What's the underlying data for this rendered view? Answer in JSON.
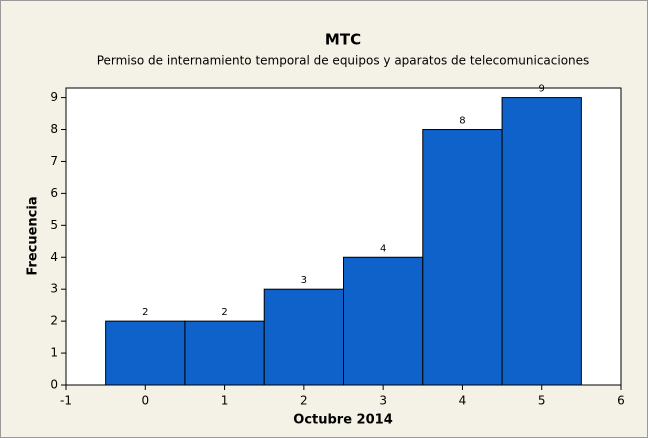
{
  "chart_data": {
    "type": "histogram",
    "title": "MTC",
    "subtitle": "Permiso de internamiento temporal de equipos y aparatos de telecomunicaciones",
    "x_label": "Octubre 2014",
    "y_label": "Frecuencia",
    "bins": [
      -0.5,
      0.5,
      1.5,
      2.5,
      3.5,
      4.5,
      5.5
    ],
    "counts": [
      2,
      2,
      3,
      4,
      8,
      9
    ],
    "color": "#0f62c9",
    "xlim": [
      -1,
      6
    ],
    "xticks": [
      -1,
      0,
      1,
      2,
      3,
      4,
      5,
      6
    ],
    "ylim": [
      0,
      9.3
    ],
    "yticks": [
      0,
      1,
      2,
      3,
      4,
      5,
      6,
      7,
      8,
      9
    ]
  }
}
